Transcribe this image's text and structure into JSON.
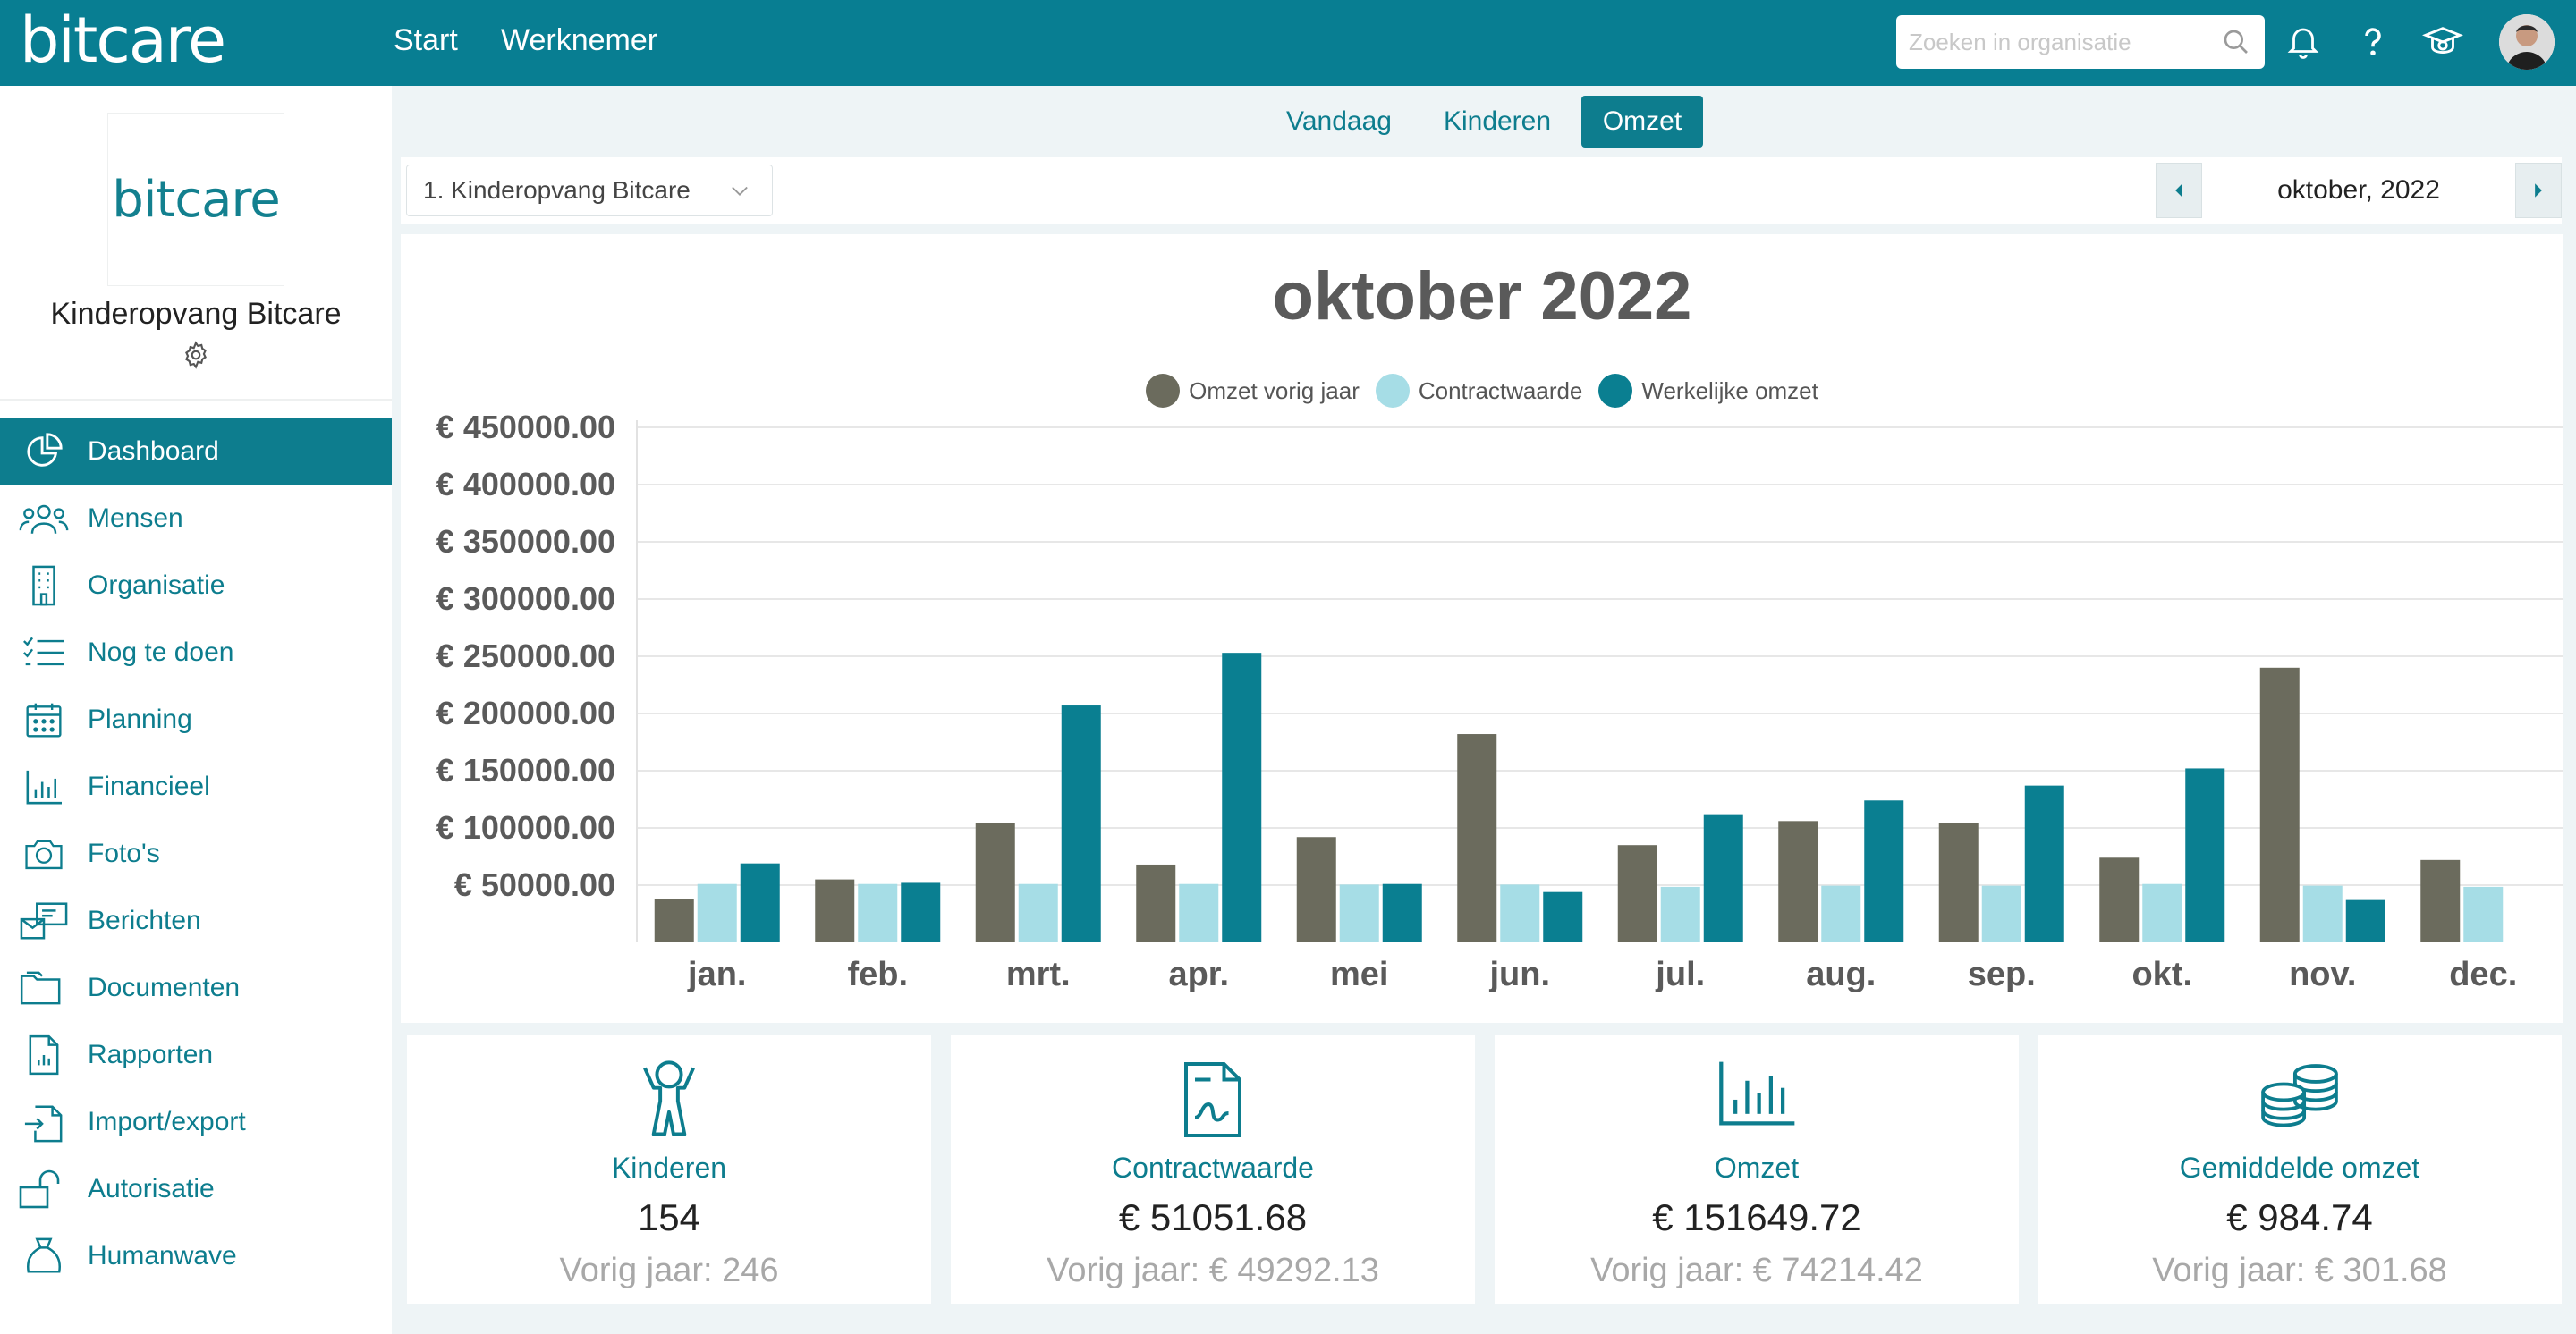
{
  "app": {
    "logo": "bitcare"
  },
  "topnav": {
    "start": "Start",
    "werknemer": "Werknemer"
  },
  "search": {
    "placeholder": "Zoeken in organisatie"
  },
  "top_icons": [
    "bell-icon",
    "help-icon",
    "academy-icon",
    "user-avatar"
  ],
  "sidebar": {
    "org_logo": "bitcare",
    "org_name": "Kinderopvang Bitcare",
    "items": [
      {
        "label": "Dashboard",
        "icon": "dashboard-icon",
        "active": true
      },
      {
        "label": "Mensen",
        "icon": "people-icon"
      },
      {
        "label": "Organisatie",
        "icon": "building-icon"
      },
      {
        "label": "Nog te doen",
        "icon": "checklist-icon"
      },
      {
        "label": "Planning",
        "icon": "calendar-icon"
      },
      {
        "label": "Financieel",
        "icon": "bar-chart-icon"
      },
      {
        "label": "Foto's",
        "icon": "camera-icon"
      },
      {
        "label": "Berichten",
        "icon": "messages-icon"
      },
      {
        "label": "Documenten",
        "icon": "folder-icon"
      },
      {
        "label": "Rapporten",
        "icon": "report-icon"
      },
      {
        "label": "Import/export",
        "icon": "import-export-icon"
      },
      {
        "label": "Autorisatie",
        "icon": "unlock-icon"
      },
      {
        "label": "Humanwave",
        "icon": "bag-icon"
      }
    ]
  },
  "tabs": [
    {
      "label": "Vandaag"
    },
    {
      "label": "Kinderen"
    },
    {
      "label": "Omzet",
      "active": true
    }
  ],
  "filters": {
    "organisation": "1. Kinderopvang Bitcare",
    "month": "oktober, 2022"
  },
  "colors": {
    "brand": "#087e92",
    "prev_year": "#6b6b5d",
    "contract": "#a6dde6",
    "actual": "#0a7f91"
  },
  "chart_data": {
    "type": "bar",
    "title": "oktober 2022",
    "categories": [
      "jan.",
      "feb.",
      "mrt.",
      "apr.",
      "mei",
      "jun.",
      "jul.",
      "aug.",
      "sep.",
      "okt.",
      "nov.",
      "dec."
    ],
    "series": [
      {
        "name": "Omzet vorig jaar",
        "color": "#6b6b5d",
        "values": [
          38000,
          55000,
          104000,
          68000,
          92000,
          182000,
          85000,
          106000,
          104000,
          74000,
          240000,
          72000
        ]
      },
      {
        "name": "Contractwaarde",
        "color": "#a6dde6",
        "values": [
          51000,
          51000,
          51000,
          51000,
          50500,
          50500,
          48500,
          49500,
          49500,
          51000,
          49500,
          48500
        ]
      },
      {
        "name": "Werkelijke omzet",
        "color": "#0a7f91",
        "values": [
          69000,
          52000,
          207000,
          253000,
          51000,
          44000,
          112000,
          124000,
          137000,
          152000,
          37000,
          null
        ]
      }
    ],
    "yticks": [
      "€ 50000.00",
      "€ 100000.00",
      "€ 150000.00",
      "€ 200000.00",
      "€ 250000.00",
      "€ 300000.00",
      "€ 350000.00",
      "€ 400000.00",
      "€ 450000.00"
    ],
    "ylim": [
      0,
      450000
    ],
    "grid": true,
    "legend_position": "top"
  },
  "stats": [
    {
      "label": "Kinderen",
      "value": "154",
      "prev": "Vorig jaar: 246",
      "icon": "child-icon"
    },
    {
      "label": "Contractwaarde",
      "value": "€ 51051.68",
      "prev": "Vorig jaar: € 49292.13",
      "icon": "contract-icon"
    },
    {
      "label": "Omzet",
      "value": "€ 151649.72",
      "prev": "Vorig jaar: € 74214.42",
      "icon": "bar-chart-icon"
    },
    {
      "label": "Gemiddelde omzet",
      "value": "€ 984.74",
      "prev": "Vorig jaar: € 301.68",
      "icon": "coins-icon"
    }
  ]
}
